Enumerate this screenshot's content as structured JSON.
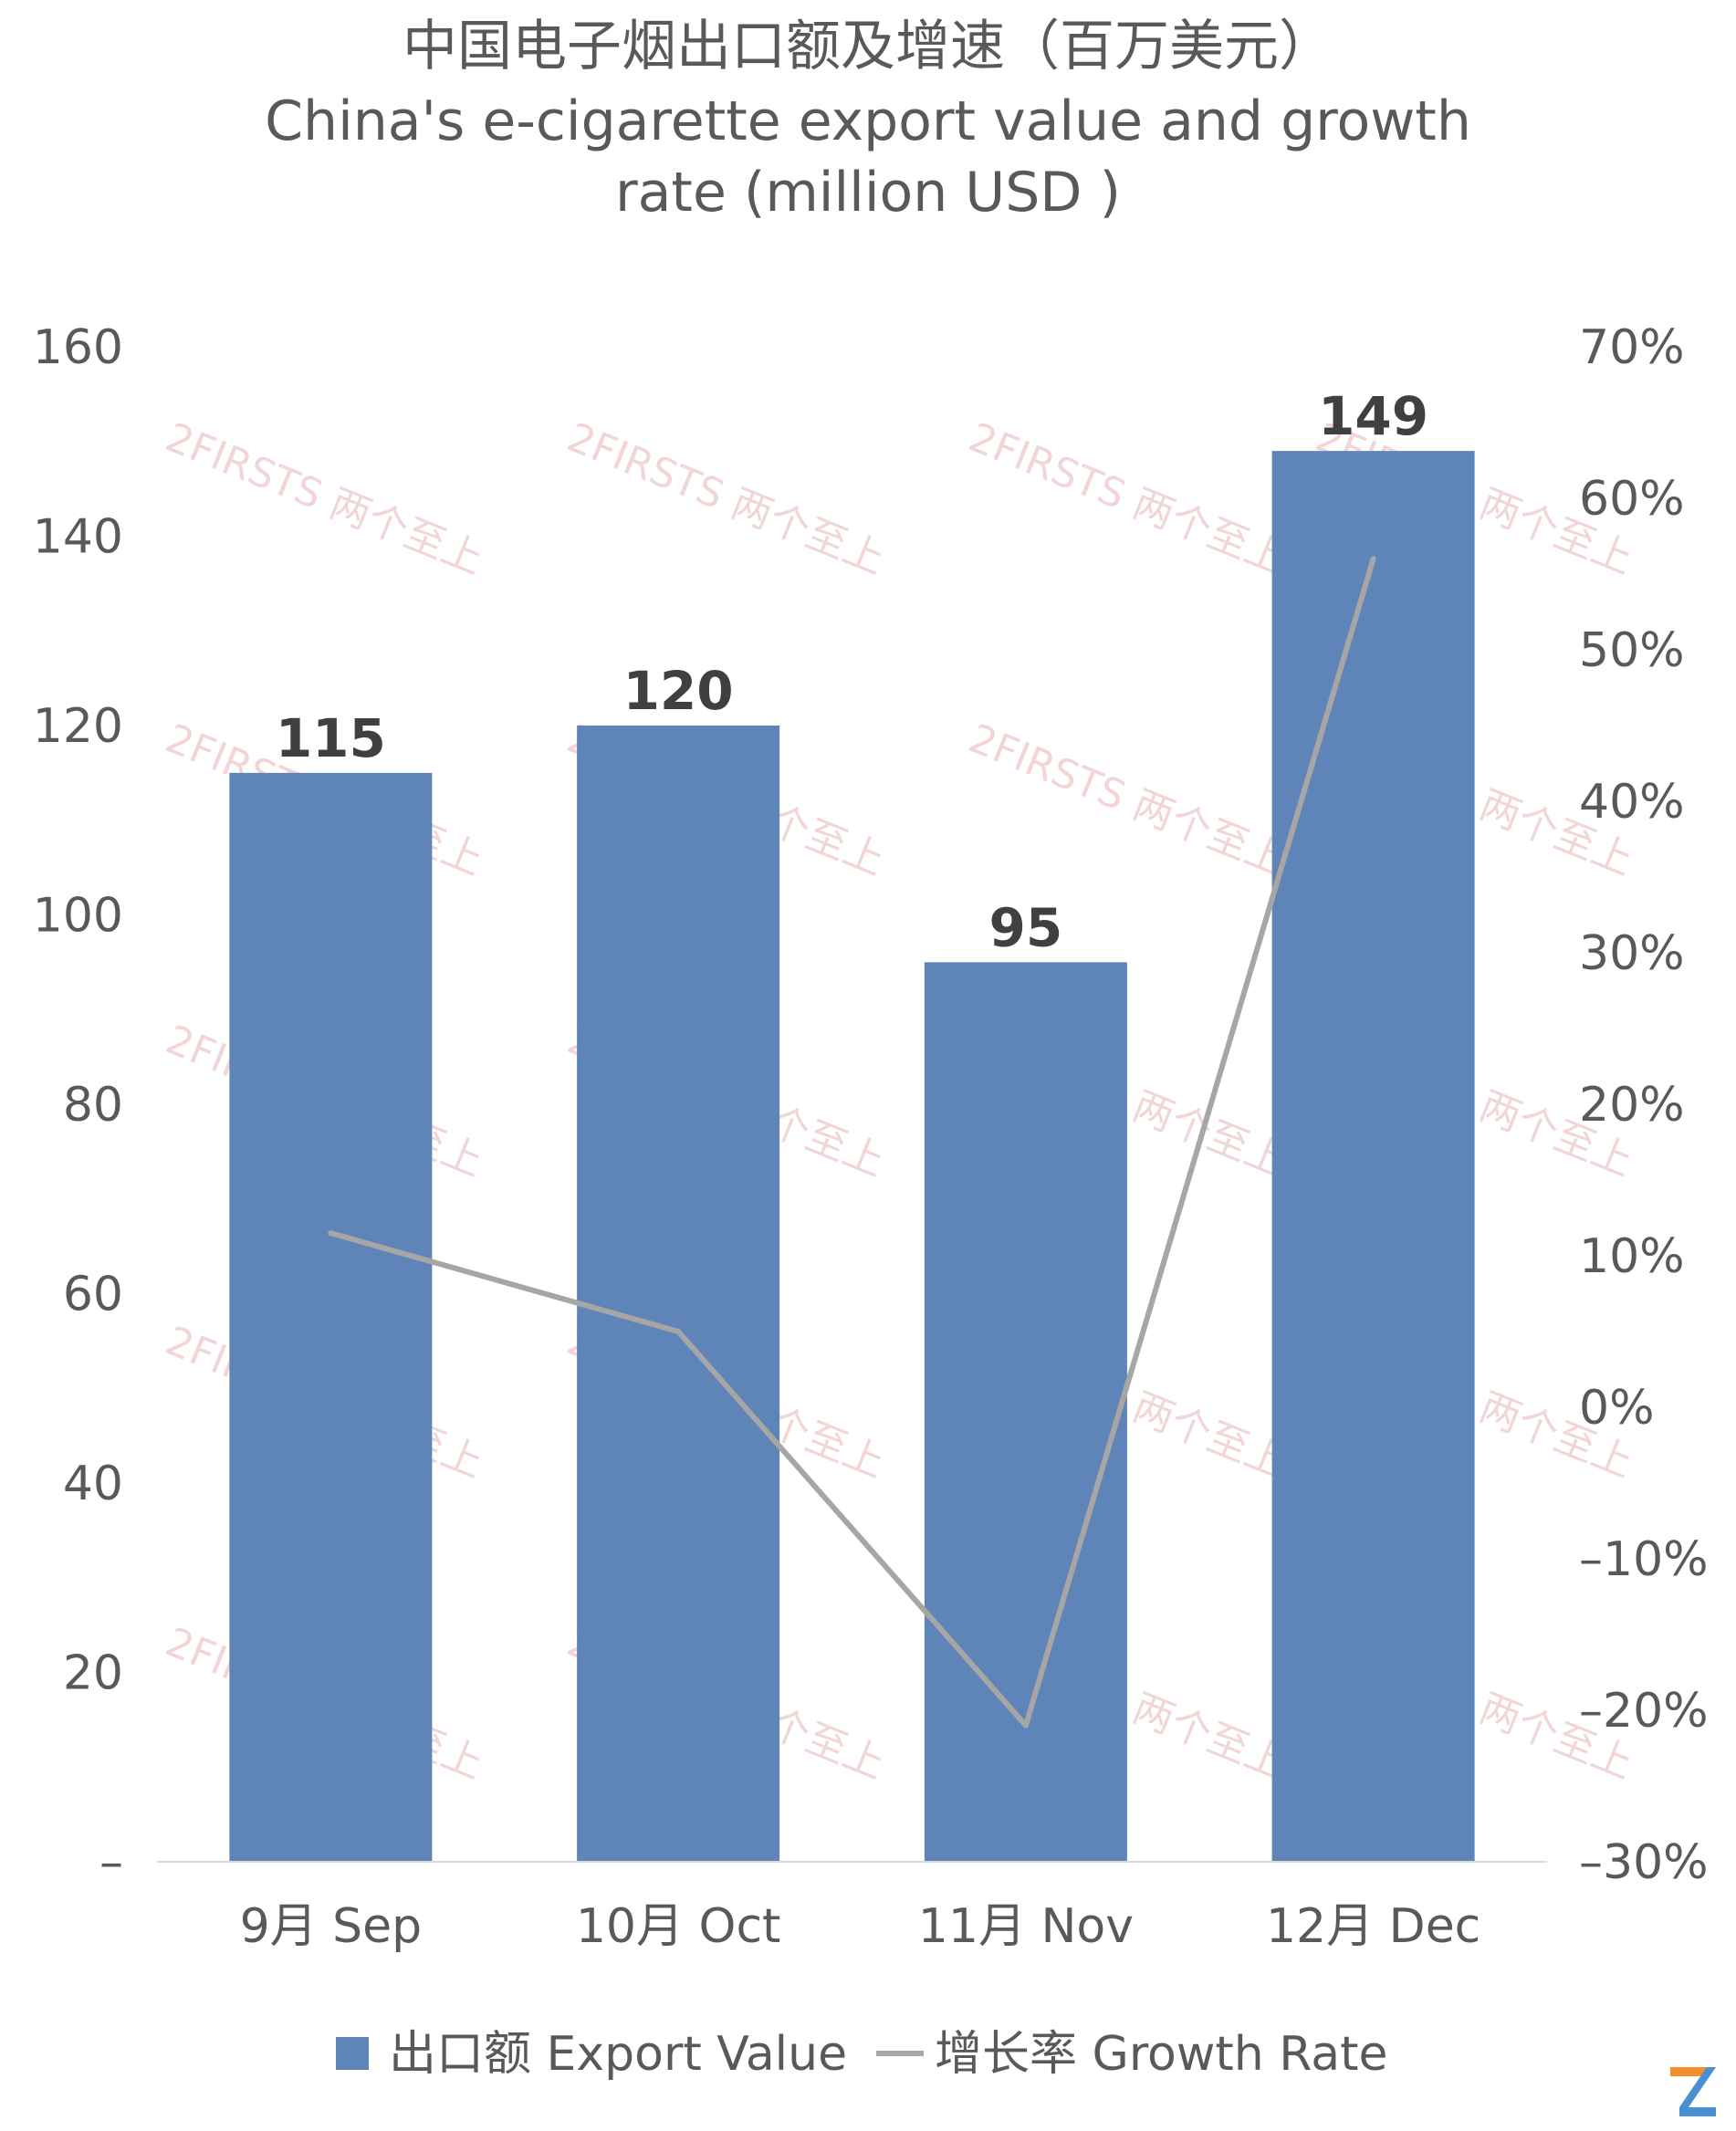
{
  "title": {
    "line1": "中国电子烟出口额及增速（百万美元）",
    "line2": "China's e-cigarette export value and growth",
    "line3": "rate (million USD )"
  },
  "watermark_text": "2FIRSTS 两个至上",
  "chart_data": {
    "type": "bar",
    "categories": [
      "9月 Sep",
      "10月 Oct",
      "11月 Nov",
      "12月 Dec"
    ],
    "series": [
      {
        "name": "出口额 Export Value",
        "type": "bar",
        "axis": "left",
        "values": [
          115,
          120,
          95,
          149
        ],
        "color": "#5f84b8"
      },
      {
        "name": "增长率 Growth Rate",
        "type": "line",
        "axis": "right",
        "values": [
          11.5,
          5,
          -21,
          56
        ],
        "color": "#a6a6a6"
      }
    ],
    "data_labels": [
      "115",
      "120",
      "95",
      "149"
    ],
    "y_left": {
      "ylim": [
        0,
        160
      ],
      "ticks": [
        0,
        20,
        40,
        60,
        80,
        100,
        120,
        140,
        160
      ],
      "tick_labels": [
        "–",
        "20",
        "40",
        "60",
        "80",
        "100",
        "120",
        "140",
        "160"
      ]
    },
    "y_right": {
      "ylim": [
        -30,
        70
      ],
      "ticks": [
        -30,
        -20,
        -10,
        0,
        10,
        20,
        30,
        40,
        50,
        60,
        70
      ],
      "tick_labels": [
        "–30%",
        "–20%",
        "–10%",
        "0%",
        "10%",
        "20%",
        "30%",
        "40%",
        "50%",
        "60%",
        "70%"
      ]
    },
    "legend": {
      "position": "bottom",
      "entries": [
        "出口额 Export Value",
        "增长率 Growth Rate"
      ]
    },
    "grid": false
  }
}
